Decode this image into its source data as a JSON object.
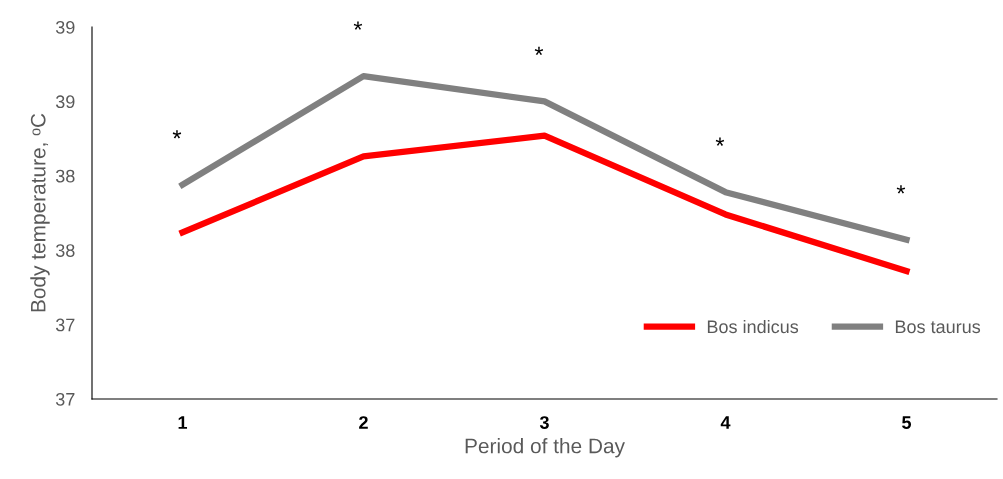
{
  "chart_data": {
    "type": "line",
    "xlabel": "Period of the Day",
    "ylabel": "Body temperature, ᵒC",
    "categories": [
      "1",
      "2",
      "3",
      "4",
      "5"
    ],
    "series": [
      {
        "name": "Bos indicus",
        "color": "#ff0000",
        "values": [
          37.62,
          38.13,
          38.27,
          37.74,
          37.36
        ]
      },
      {
        "name": "Bos taurus",
        "color": "#808080",
        "values": [
          37.94,
          38.67,
          38.5,
          37.89,
          37.57
        ]
      }
    ],
    "ylim": [
      36.5,
      39.0
    ],
    "yticks": [
      {
        "value": 36.5,
        "label": "37"
      },
      {
        "value": 37.0,
        "label": "37"
      },
      {
        "value": 37.5,
        "label": "38"
      },
      {
        "value": 38.0,
        "label": "38"
      },
      {
        "value": 38.5,
        "label": "39"
      },
      {
        "value": 39.0,
        "label": "39"
      }
    ],
    "annotations": [
      "*",
      "*",
      "*",
      "*",
      "*"
    ],
    "legend": "right",
    "grid": false,
    "marker": "none",
    "line_style": "solid"
  }
}
